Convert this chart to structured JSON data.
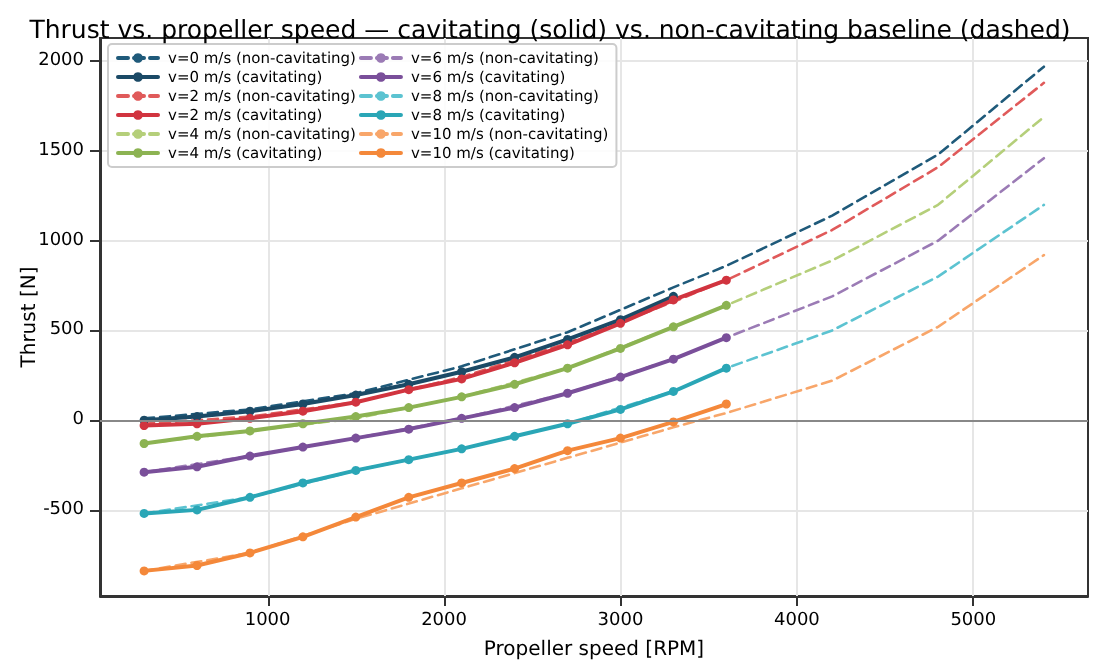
{
  "chart_data": {
    "type": "line",
    "title": "Thrust vs. propeller speed — cavitating (solid) vs. non-cavitating baseline (dashed)",
    "xlabel": "Propeller speed [RPM]",
    "ylabel": "Thrust [N]",
    "xlim": [
      50,
      5650
    ],
    "xticks": [
      1000,
      2000,
      3000,
      4000,
      5000
    ],
    "ylim": [
      -980,
      2130
    ],
    "yticks": [
      -500,
      0,
      500,
      1000,
      1500,
      2000
    ],
    "grid": true,
    "legend": "top left",
    "ref_lines": [
      {
        "axis": "y",
        "value": 0,
        "color": "#888888",
        "line_style": "solid"
      }
    ],
    "series": [
      {
        "name": "v=0 m/s (non-cavitating)",
        "color": "#1f5a7a",
        "line_style": "dashed",
        "marker": "none",
        "x": [
          300,
          900,
          1500,
          2100,
          2700,
          3300,
          3600,
          4200,
          4800,
          5400
        ],
        "values": [
          10,
          60,
          150,
          300,
          490,
          740,
          860,
          1140,
          1480,
          1970
        ]
      },
      {
        "name": "v=0 m/s (cavitating)",
        "color": "#1b4a66",
        "line_style": "solid",
        "marker": "circle",
        "x": [
          300,
          600,
          900,
          1200,
          1500,
          1800,
          2100,
          2400,
          2700,
          3000,
          3300
        ],
        "values": [
          0,
          20,
          50,
          90,
          140,
          200,
          270,
          350,
          450,
          560,
          690
        ]
      },
      {
        "name": "v=2 m/s (non-cavitating)",
        "color": "#e05a5a",
        "line_style": "dashed",
        "marker": "none",
        "x": [
          300,
          900,
          1500,
          2100,
          2700,
          3300,
          3600,
          4200,
          4800,
          5400
        ],
        "values": [
          -20,
          20,
          100,
          240,
          430,
          660,
          780,
          1060,
          1410,
          1880
        ]
      },
      {
        "name": "v=2 m/s (cavitating)",
        "color": "#d1343f",
        "line_style": "solid",
        "marker": "circle",
        "x": [
          300,
          600,
          900,
          1200,
          1500,
          1800,
          2100,
          2400,
          2700,
          3000,
          3300,
          3600
        ],
        "values": [
          -30,
          -20,
          10,
          50,
          100,
          170,
          230,
          320,
          420,
          540,
          670,
          780
        ]
      },
      {
        "name": "v=4 m/s (non-cavitating)",
        "color": "#b5cf7a",
        "line_style": "dashed",
        "marker": "none",
        "x": [
          300,
          900,
          1500,
          2100,
          2700,
          3300,
          3600,
          4200,
          4800,
          5400
        ],
        "values": [
          -130,
          -60,
          10,
          130,
          290,
          520,
          640,
          890,
          1200,
          1690
        ]
      },
      {
        "name": "v=4 m/s (cavitating)",
        "color": "#8cb352",
        "line_style": "solid",
        "marker": "circle",
        "x": [
          300,
          600,
          900,
          1200,
          1500,
          1800,
          2100,
          2400,
          2700,
          3000,
          3300,
          3600
        ],
        "values": [
          -130,
          -90,
          -60,
          -20,
          20,
          70,
          130,
          200,
          290,
          400,
          520,
          640
        ]
      },
      {
        "name": "v=6 m/s (non-cavitating)",
        "color": "#9b7bb5",
        "line_style": "dashed",
        "marker": "none",
        "x": [
          300,
          900,
          1500,
          2100,
          2700,
          3300,
          3600,
          4200,
          4800,
          5400
        ],
        "values": [
          -290,
          -200,
          -100,
          10,
          150,
          340,
          460,
          690,
          1000,
          1460
        ]
      },
      {
        "name": "v=6 m/s (cavitating)",
        "color": "#7a4f9a",
        "line_style": "solid",
        "marker": "circle",
        "x": [
          300,
          600,
          900,
          1200,
          1500,
          1800,
          2100,
          2400,
          2700,
          3000,
          3300,
          3600
        ],
        "values": [
          -290,
          -260,
          -200,
          -150,
          -100,
          -50,
          10,
          70,
          150,
          240,
          340,
          460
        ]
      },
      {
        "name": "v=8 m/s (non-cavitating)",
        "color": "#5cc3d1",
        "line_style": "dashed",
        "marker": "none",
        "x": [
          300,
          900,
          1500,
          2100,
          2700,
          3300,
          3600,
          4200,
          4800,
          5400
        ],
        "values": [
          -520,
          -430,
          -280,
          -160,
          -20,
          160,
          290,
          500,
          800,
          1200
        ]
      },
      {
        "name": "v=8 m/s (cavitating)",
        "color": "#2aa6b6",
        "line_style": "solid",
        "marker": "circle",
        "x": [
          300,
          600,
          900,
          1200,
          1500,
          1800,
          2100,
          2400,
          2700,
          3000,
          3300,
          3600
        ],
        "values": [
          -520,
          -500,
          -430,
          -350,
          -280,
          -220,
          -160,
          -90,
          -20,
          60,
          160,
          290
        ]
      },
      {
        "name": "v=10 m/s (non-cavitating)",
        "color": "#f8a66a",
        "line_style": "dashed",
        "marker": "none",
        "x": [
          300,
          900,
          1500,
          2100,
          2700,
          3300,
          3600,
          4200,
          4800,
          5400
        ],
        "values": [
          -840,
          -740,
          -550,
          -380,
          -210,
          -40,
          40,
          220,
          520,
          920
        ]
      },
      {
        "name": "v=10 m/s (cavitating)",
        "color": "#f4883a",
        "line_style": "solid",
        "marker": "circle",
        "x": [
          300,
          600,
          900,
          1200,
          1500,
          1800,
          2100,
          2400,
          2700,
          3000,
          3300,
          3600
        ],
        "values": [
          -840,
          -810,
          -740,
          -650,
          -540,
          -430,
          -350,
          -270,
          -170,
          -100,
          -10,
          90
        ]
      }
    ]
  }
}
